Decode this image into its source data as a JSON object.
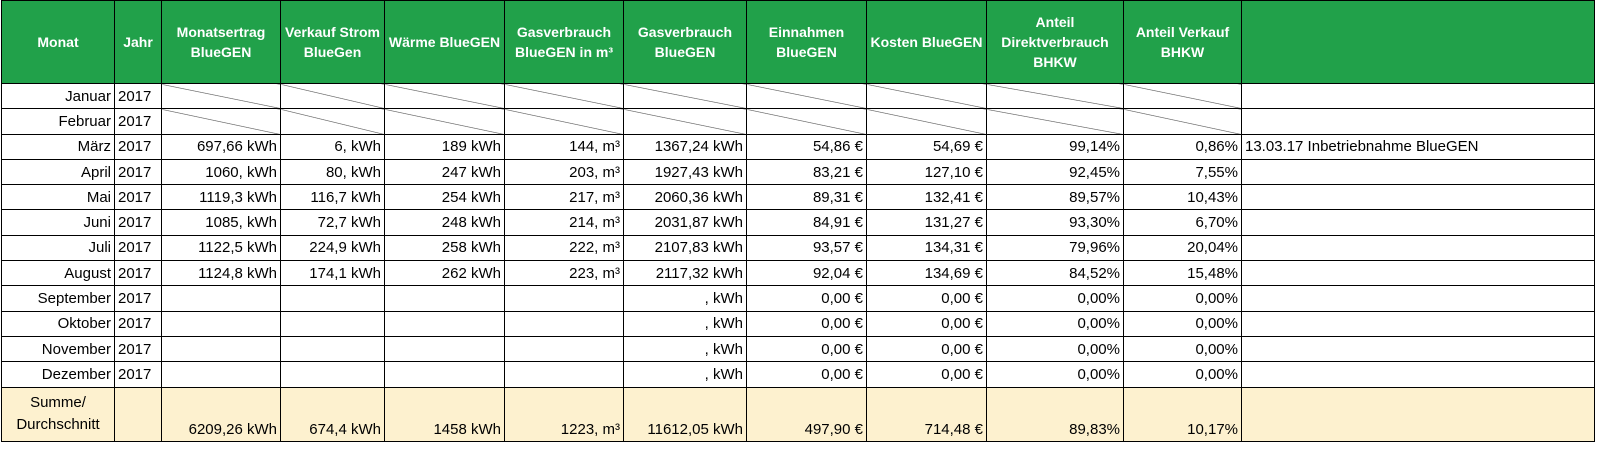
{
  "table": {
    "header": [
      "Monat",
      "Jahr",
      "Monatsertrag BlueGEN",
      "Verkauf Strom BlueGen",
      "Wärme BlueGEN",
      "Gasverbrauch BlueGEN in m³",
      "Gasverbrauch BlueGEN",
      "Einnahmen BlueGEN",
      "Kosten BlueGEN",
      "Anteil Direktverbrauch BHKW",
      "Anteil Verkauf BHKW",
      null
    ],
    "rows": [
      [
        "Januar",
        "2017",
        null,
        null,
        null,
        null,
        null,
        null,
        null,
        null,
        null,
        null
      ],
      [
        "Februar",
        "2017",
        null,
        null,
        null,
        null,
        null,
        null,
        null,
        null,
        null,
        null
      ],
      [
        "März",
        "2017",
        "697,66 kWh",
        "6, kWh",
        "189 kWh",
        "144, m³",
        "1367,24 kWh",
        "54,86 €",
        "54,69 €",
        "99,14%",
        "0,86%",
        "13.03.17 Inbetriebnahme BlueGEN"
      ],
      [
        "April",
        "2017",
        "1060, kWh",
        "80, kWh",
        "247 kWh",
        "203, m³",
        "1927,43 kWh",
        "83,21 €",
        "127,10 €",
        "92,45%",
        "7,55%",
        null
      ],
      [
        "Mai",
        "2017",
        "1119,3 kWh",
        "116,7 kWh",
        "254 kWh",
        "217, m³",
        "2060,36 kWh",
        "89,31 €",
        "132,41 €",
        "89,57%",
        "10,43%",
        null
      ],
      [
        "Juni",
        "2017",
        "1085, kWh",
        "72,7 kWh",
        "248 kWh",
        "214, m³",
        "2031,87 kWh",
        "84,91 €",
        "131,27 €",
        "93,30%",
        "6,70%",
        null
      ],
      [
        "Juli",
        "2017",
        "1122,5 kWh",
        "224,9 kWh",
        "258 kWh",
        "222, m³",
        "2107,83 kWh",
        "93,57 €",
        "134,31 €",
        "79,96%",
        "20,04%",
        null
      ],
      [
        "August",
        "2017",
        "1124,8 kWh",
        "174,1 kWh",
        "262 kWh",
        "223, m³",
        "2117,32 kWh",
        "92,04 €",
        "134,69 €",
        "84,52%",
        "15,48%",
        null
      ],
      [
        "September",
        "2017",
        null,
        null,
        null,
        null,
        ", kWh",
        "0,00 €",
        "0,00 €",
        "0,00%",
        "0,00%",
        null
      ],
      [
        "Oktober",
        "2017",
        null,
        null,
        null,
        null,
        ", kWh",
        "0,00 €",
        "0,00 €",
        "0,00%",
        "0,00%",
        null
      ],
      [
        "November",
        "2017",
        null,
        null,
        null,
        null,
        ", kWh",
        "0,00 €",
        "0,00 €",
        "0,00%",
        "0,00%",
        null
      ],
      [
        "Dezember",
        "2017",
        null,
        null,
        null,
        null,
        ", kWh",
        "0,00 €",
        "0,00 €",
        "0,00%",
        "0,00%",
        null
      ],
      [
        "Summe/ Durchschnitt",
        null,
        "6209,26 kWh",
        "674,4 kWh",
        "1458 kWh",
        "1223, m³",
        "11612,05 kWh",
        "497,90 €",
        "714,48 €",
        "89,83%",
        "10,17%",
        null
      ]
    ]
  }
}
